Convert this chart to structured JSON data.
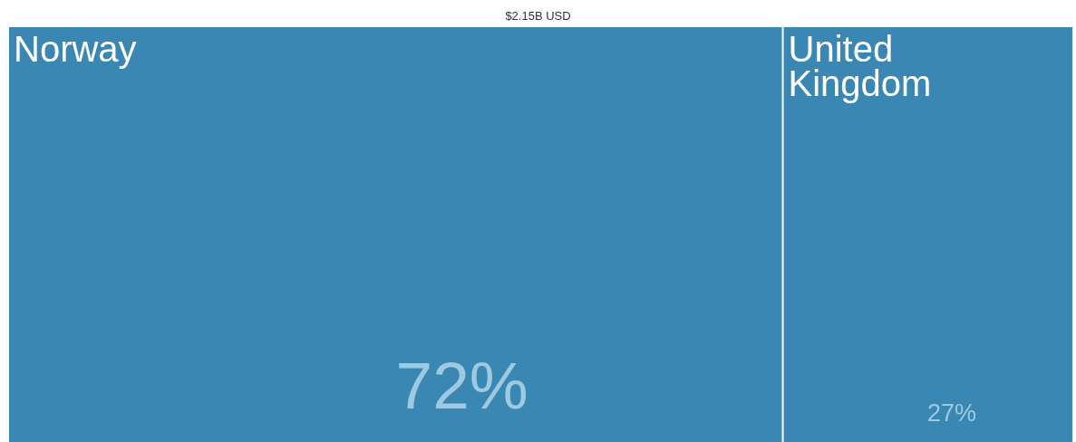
{
  "chart_data": {
    "type": "other",
    "title": "$2.15B USD",
    "categories": [
      "Norway",
      "United Kingdom"
    ],
    "values": [
      72,
      27
    ],
    "value_labels": [
      "72%",
      "27%"
    ],
    "colors": [
      "#3a87b3",
      "#3a87b3"
    ]
  }
}
